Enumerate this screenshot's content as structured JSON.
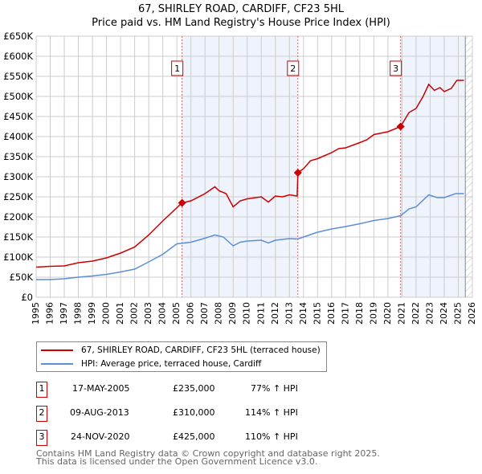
{
  "title": "67, SHIRLEY ROAD, CARDIFF, CF23 5HL",
  "subtitle": "Price paid vs. HM Land Registry's House Price Index (HPI)",
  "chart_data": {
    "type": "line",
    "title": "67, SHIRLEY ROAD, CARDIFF, CF23 5HL",
    "subtitle": "Price paid vs. HM Land Registry's House Price Index (HPI)",
    "xlim": [
      1995,
      2026
    ],
    "ylim": [
      0,
      650000
    ],
    "x_ticks": [
      "1995",
      "1996",
      "1997",
      "1998",
      "1999",
      "2000",
      "2001",
      "2002",
      "2003",
      "2004",
      "2005",
      "2006",
      "2007",
      "2008",
      "2009",
      "2010",
      "2011",
      "2012",
      "2013",
      "2014",
      "2015",
      "2016",
      "2017",
      "2018",
      "2019",
      "2020",
      "2021",
      "2022",
      "2023",
      "2024",
      "2025",
      "2026"
    ],
    "y_ticks": [
      "£0",
      "£50K",
      "£100K",
      "£150K",
      "£200K",
      "£250K",
      "£300K",
      "£350K",
      "£400K",
      "£450K",
      "£500K",
      "£550K",
      "£600K",
      "£650K"
    ],
    "grid": true,
    "legend_position": "bottom",
    "series": [
      {
        "name": "67, SHIRLEY ROAD, CARDIFF, CF23 5HL (terraced house)",
        "color": "#cc0000",
        "x": [
          1995,
          1996,
          1997,
          1998,
          1999,
          2000,
          2001,
          2002,
          2003,
          2004,
          2005.37,
          2006,
          2007,
          2007.7,
          2008,
          2008.5,
          2009,
          2009.5,
          2010,
          2011,
          2011.5,
          2012,
          2012.5,
          2013,
          2013.55,
          2013.6,
          2014,
          2014.5,
          2015,
          2016,
          2016.5,
          2017,
          2018,
          2018.5,
          2019,
          2020,
          2020.9,
          2021.5,
          2022,
          2022.5,
          2022.9,
          2023.3,
          2023.7,
          2024,
          2024.5,
          2024.9,
          2025.4
        ],
        "y": [
          75000,
          77000,
          78000,
          86000,
          90000,
          98000,
          110000,
          125000,
          155000,
          190000,
          235000,
          240000,
          258000,
          275000,
          265000,
          258000,
          225000,
          240000,
          245000,
          250000,
          237000,
          252000,
          250000,
          255000,
          252000,
          310000,
          320000,
          340000,
          345000,
          360000,
          370000,
          372000,
          385000,
          392000,
          405000,
          412000,
          425000,
          460000,
          470000,
          500000,
          530000,
          515000,
          522000,
          512000,
          520000,
          540000,
          540000
        ]
      },
      {
        "name": "HPI: Average price, terraced house, Cardiff",
        "color": "#5b8fd6",
        "x": [
          1995,
          1996,
          1997,
          1998,
          1999,
          2000,
          2001,
          2002,
          2003,
          2004,
          2005,
          2006,
          2007,
          2007.7,
          2008.3,
          2009,
          2009.5,
          2010,
          2011,
          2011.5,
          2012,
          2013,
          2013.6,
          2014,
          2015,
          2016,
          2017,
          2018,
          2019,
          2020,
          2020.9,
          2021.5,
          2022,
          2022.9,
          2023.5,
          2024,
          2024.8,
          2025.4
        ],
        "y": [
          44000,
          44000,
          46000,
          50000,
          53000,
          57000,
          63000,
          70000,
          88000,
          107000,
          133000,
          137000,
          147000,
          155000,
          150000,
          128000,
          137000,
          140000,
          142000,
          135000,
          142000,
          146000,
          145000,
          150000,
          162000,
          170000,
          176000,
          183000,
          191000,
          196000,
          203000,
          220000,
          225000,
          255000,
          248000,
          248000,
          258000,
          258000
        ]
      }
    ],
    "sales": [
      {
        "label": "1",
        "x": 2005.37,
        "y": 235000
      },
      {
        "label": "2",
        "x": 2013.6,
        "y": 310000
      },
      {
        "label": "3",
        "x": 2020.9,
        "y": 425000
      }
    ],
    "shaded_ranges": [
      [
        2005.37,
        2013.6
      ],
      [
        2020.9,
        2025.5
      ]
    ],
    "forecast_hatch_from": 2025.5
  },
  "legend": [
    {
      "label": "67, SHIRLEY ROAD, CARDIFF, CF23 5HL (terraced house)",
      "color": "#cc0000"
    },
    {
      "label": "HPI: Average price, terraced house, Cardiff",
      "color": "#5b8fd6"
    }
  ],
  "transactions": [
    {
      "num": "1",
      "date": "17-MAY-2005",
      "price": "£235,000",
      "hpi": "77% ↑ HPI"
    },
    {
      "num": "2",
      "date": "09-AUG-2013",
      "price": "£310,000",
      "hpi": "114% ↑ HPI"
    },
    {
      "num": "3",
      "date": "24-NOV-2020",
      "price": "£425,000",
      "hpi": "110% ↑ HPI"
    }
  ],
  "footer": {
    "line1": "Contains HM Land Registry data © Crown copyright and database right 2025.",
    "line2": "This data is licensed under the Open Government Licence v3.0."
  }
}
